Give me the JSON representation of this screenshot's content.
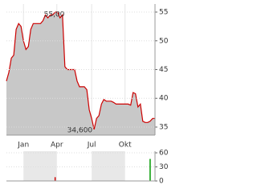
{
  "chart_data": [
    {
      "type": "area",
      "color": "#cc0000",
      "fill": "#c8c8c8",
      "x": [
        0,
        1,
        2,
        3,
        4,
        5,
        6,
        7,
        8,
        9,
        10,
        11,
        12,
        13,
        14,
        15,
        16,
        17,
        18,
        19,
        20,
        21,
        22,
        23,
        24,
        25,
        26,
        27,
        28,
        29,
        30,
        31,
        32,
        33,
        34,
        35,
        36,
        37,
        38,
        39,
        40,
        41,
        42,
        43,
        44,
        45,
        46,
        47,
        48,
        49,
        50,
        51,
        52,
        53,
        54,
        55,
        56,
        57,
        58,
        59,
        60,
        61
      ],
      "values": [
        43,
        44.5,
        47,
        47.5,
        52,
        53,
        52.5,
        50,
        48.5,
        49,
        52,
        53,
        53,
        53,
        53,
        53.5,
        54.5,
        54,
        54.5,
        54.5,
        55,
        55,
        54,
        54.5,
        45.5,
        45,
        45,
        45,
        45,
        43,
        42,
        42,
        42,
        41.5,
        38,
        36.5,
        34.6,
        36.5,
        37,
        39,
        39.8,
        39.5,
        39.5,
        39.5,
        39.3,
        39,
        39,
        39,
        39,
        39,
        39,
        38.8,
        41,
        40.8,
        38.5,
        39,
        36,
        35.8,
        35.8,
        36,
        36.5,
        36.5
      ],
      "xlim": [
        0,
        61
      ],
      "xticks": [
        {
          "value": 7,
          "label": "Jan"
        },
        {
          "value": 20.7,
          "label": "Apr"
        },
        {
          "value": 35,
          "label": "Jul"
        },
        {
          "value": 48.7,
          "label": "Okt"
        }
      ],
      "ylim": [
        33.6,
        56.4
      ],
      "yticks": [
        35,
        40,
        45,
        50,
        55
      ],
      "grid": true,
      "annotations": [
        {
          "text": "55,00"
        },
        {
          "text": "34,600"
        }
      ]
    },
    {
      "type": "bar",
      "x": [
        20,
        59
      ],
      "values": [
        8,
        47
      ],
      "colors": [
        "#cc0000",
        "#009900"
      ],
      "xlim": [
        0,
        61
      ],
      "ylim": [
        0,
        63.5
      ],
      "yticks": [
        0,
        30,
        60
      ],
      "grid": true
    }
  ]
}
